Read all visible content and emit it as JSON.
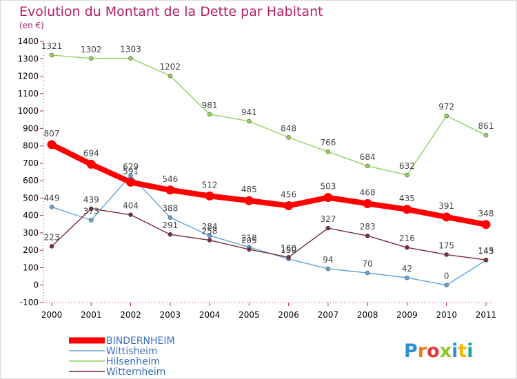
{
  "title": "Evolution du Montant de la Dette par Habitant",
  "unit_label": "(en €)",
  "logo": {
    "text": "Proxiti",
    "letter_colors": [
      "#2e8fd6",
      "#f07b1a",
      "#e2363b",
      "#8fc31f",
      "#2e8fd6",
      "#f5b800",
      "#1aa0a0"
    ]
  },
  "chart_data": {
    "type": "line",
    "title": "Evolution du Montant de la Dette par Habitant",
    "ylabel": "(en €)",
    "xlabel": "",
    "x": [
      "2000",
      "2001",
      "2002",
      "2003",
      "2004",
      "2005",
      "2006",
      "2007",
      "2008",
      "2009",
      "2010",
      "2011"
    ],
    "ylim": [
      -100,
      1400
    ],
    "yticks": [
      -100,
      0,
      100,
      200,
      300,
      400,
      500,
      600,
      700,
      800,
      900,
      1000,
      1100,
      1200,
      1300,
      1400
    ],
    "grid": false,
    "legend_position": "bottom-left",
    "series": [
      {
        "name": "BINDERNHEIM",
        "color": "#ff0000",
        "values": [
          807,
          694,
          591,
          546,
          512,
          485,
          456,
          503,
          468,
          435,
          391,
          348
        ],
        "labels": [
          "807",
          "694",
          "591",
          "546",
          "512",
          "485",
          "456",
          "503",
          "468",
          "435",
          "391",
          "348"
        ]
      },
      {
        "name": "Wittisheim",
        "color": "#5ea4d8",
        "values": [
          449,
          373,
          629,
          388,
          284,
          218,
          150,
          94,
          70,
          42,
          0,
          143
        ],
        "labels": [
          "449",
          "373",
          "629",
          "388",
          "284",
          "218",
          "150",
          "94",
          "70",
          "42",
          "0",
          "143"
        ]
      },
      {
        "name": "Hilsenheim",
        "color": "#8fd35b",
        "values": [
          1321,
          1302,
          1303,
          1202,
          981,
          941,
          848,
          766,
          684,
          632,
          972,
          861
        ],
        "labels": [
          "1321",
          "1302",
          "1303",
          "1202",
          "981",
          "941",
          "848",
          "766",
          "684",
          "632",
          "972",
          "861"
        ]
      },
      {
        "name": "Witternheim",
        "color": "#7a2a38",
        "values": [
          223,
          439,
          404,
          291,
          258,
          205,
          160,
          327,
          283,
          216,
          175,
          145
        ],
        "labels": [
          "223",
          "439",
          "404",
          "291",
          "258",
          "205",
          "160",
          "327",
          "283",
          "216",
          "175",
          "145"
        ]
      }
    ]
  }
}
